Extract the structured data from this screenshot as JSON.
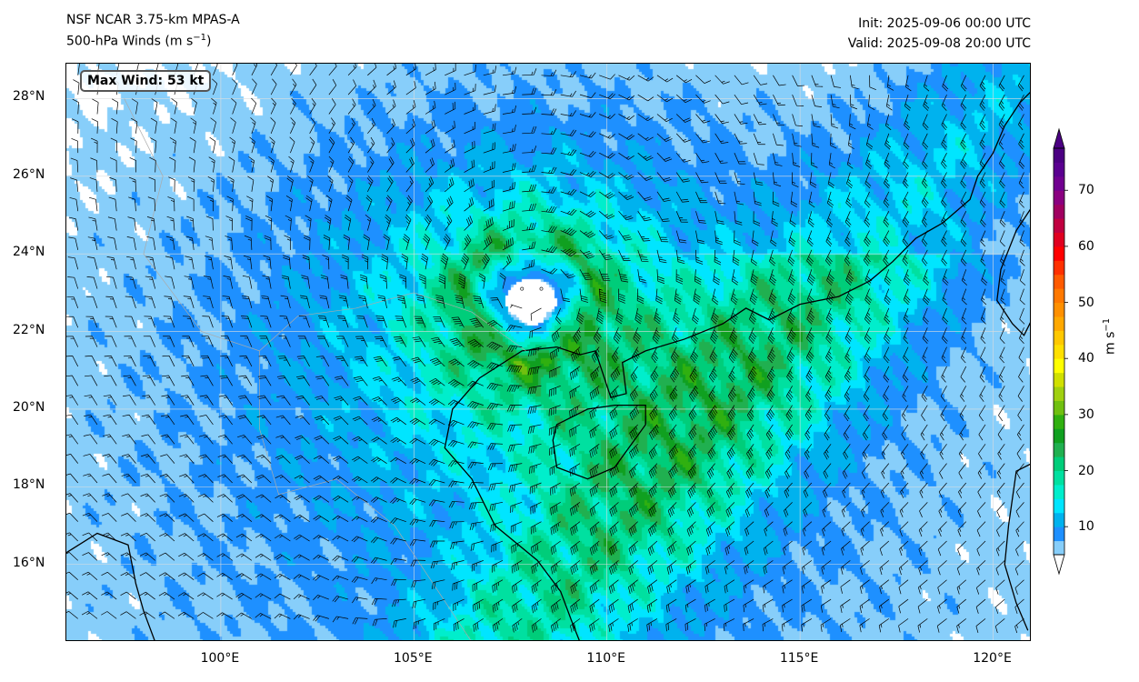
{
  "header": {
    "title_line1": "NSF NCAR 3.75-km MPAS-A",
    "title_line2": "500-hPa Winds (m s",
    "title_line2_sup": "−1",
    "title_line2_end": ")",
    "init": "Init: 2025-09-06 00:00 UTC",
    "valid": "Valid: 2025-09-08 20:00 UTC"
  },
  "annotation": {
    "max_wind": "Max Wind: 53 kt"
  },
  "map": {
    "lon_range": [
      96,
      121
    ],
    "lat_range": [
      14,
      28.9
    ],
    "lat_labels": [
      {
        "v": 28,
        "t": "28°N"
      },
      {
        "v": 26,
        "t": "26°N"
      },
      {
        "v": 24,
        "t": "24°N"
      },
      {
        "v": 22,
        "t": "22°N"
      },
      {
        "v": 20,
        "t": "20°N"
      },
      {
        "v": 18,
        "t": "18°N"
      },
      {
        "v": 16,
        "t": "16°N"
      }
    ],
    "lon_labels": [
      {
        "v": 100,
        "t": "100°E"
      },
      {
        "v": 105,
        "t": "105°E"
      },
      {
        "v": 110,
        "t": "110°E"
      },
      {
        "v": 115,
        "t": "115°E"
      },
      {
        "v": 120,
        "t": "120°E"
      }
    ],
    "cyclone_center": [
      108.0,
      22.8
    ]
  },
  "colorbar": {
    "label": "m s",
    "label_sup": "−1",
    "ticks": [
      {
        "v": 10,
        "t": "10"
      },
      {
        "v": 20,
        "t": "20"
      },
      {
        "v": 30,
        "t": "30"
      },
      {
        "v": 40,
        "t": "40"
      },
      {
        "v": 50,
        "t": "50"
      },
      {
        "v": 60,
        "t": "60"
      },
      {
        "v": 70,
        "t": "70"
      }
    ],
    "min": 5,
    "max": 77.5,
    "step": 2.5,
    "colors": [
      "#87cefa",
      "#1e90ff",
      "#00b2ee",
      "#00e5ff",
      "#00eecc",
      "#00e0a0",
      "#00cd7a",
      "#20b050",
      "#10a020",
      "#30b010",
      "#70c010",
      "#a0d010",
      "#d0e000",
      "#ffff00",
      "#ffe000",
      "#ffc800",
      "#ffa800",
      "#ff9000",
      "#ff7800",
      "#ff5a00",
      "#ff3000",
      "#ff0000",
      "#e00020",
      "#c00040",
      "#a00060",
      "#8a0080",
      "#700090",
      "#5a0090",
      "#4b0082"
    ]
  }
}
